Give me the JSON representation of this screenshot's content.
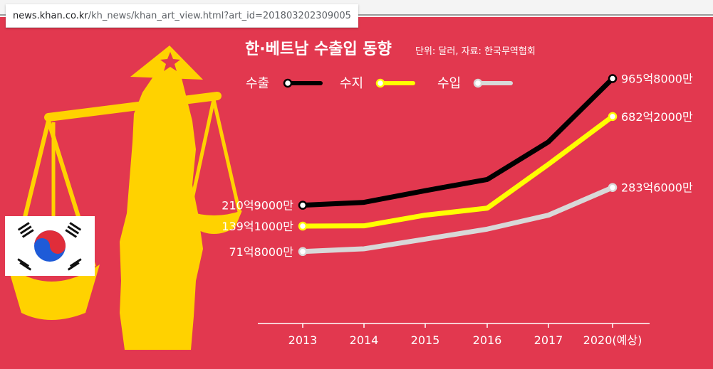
{
  "browser": {
    "url_host": "news.khan.co.kr",
    "url_path": "/kh_news/khan_art_view.html?art_id=201803202309005"
  },
  "colors": {
    "background": "#e2384f",
    "export": "#000000",
    "balance": "#ffff00",
    "import": "#d8d8d8",
    "figure": "#ffd200"
  },
  "chart_data": {
    "type": "line",
    "title": "한·베트남 수출입 동향",
    "subtitle": "단위: 달러, 자료: 한국무역협회",
    "categories": [
      "2013",
      "2014",
      "2015",
      "2016",
      "2017",
      "2020(예상)"
    ],
    "series": [
      {
        "name": "수출",
        "color": "#000000",
        "values": [
          210.9,
          222,
          270,
          320,
          520,
          965.8
        ]
      },
      {
        "name": "수지",
        "color": "#ffff00",
        "values": [
          139.1,
          140,
          175,
          200,
          395,
          682.2
        ]
      },
      {
        "name": "수입",
        "color": "#d8d8d8",
        "values": [
          71.8,
          78,
          102,
          130,
          175,
          283.6
        ]
      }
    ],
    "unit": "억 달러",
    "annotations": {
      "start": [
        "210억9000만",
        "139억1000만",
        "71억8000만"
      ],
      "end": [
        "965억8000만",
        "682억2000만",
        "283억6000만"
      ]
    },
    "ylim": [
      0,
      1100
    ],
    "legend_position": "top-left",
    "grid": false
  }
}
